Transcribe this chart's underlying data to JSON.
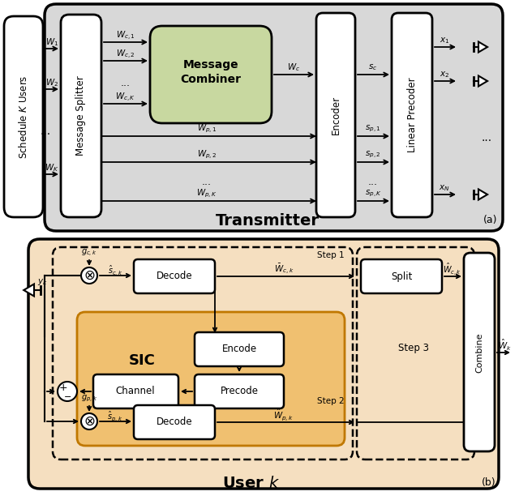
{
  "fig_width": 6.4,
  "fig_height": 6.17,
  "bg_color": "#ffffff",
  "gray_bg": "#d8d8d8",
  "orange_bg": "#f5dfc0",
  "green_box": "#c8d8a0",
  "orange_box": "#f0c070",
  "white_box": "#ffffff",
  "panel_a_title": "Transmitter",
  "panel_b_title": "User $k$",
  "label_a": "(a)",
  "label_b": "(b)"
}
